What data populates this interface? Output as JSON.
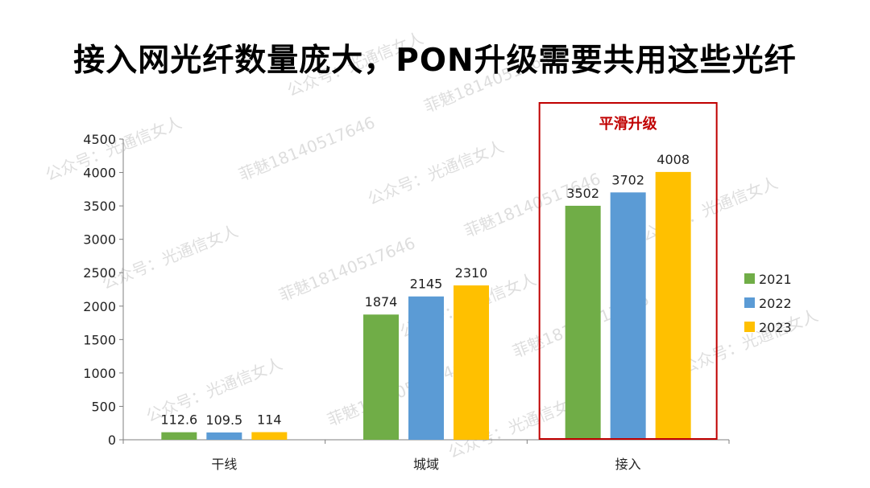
{
  "title": "接入网光纤数量庞大，PON升级需要共用这些光纤",
  "chart_data": {
    "type": "bar",
    "categories": [
      "干线",
      "城域",
      "接入"
    ],
    "series": [
      {
        "name": "2021",
        "values": [
          112.6,
          1874,
          3502
        ]
      },
      {
        "name": "2022",
        "values": [
          109.5,
          2145,
          3702
        ]
      },
      {
        "name": "2023",
        "values": [
          114,
          2310,
          4008
        ]
      }
    ],
    "data_labels": [
      [
        "112.6",
        "1874",
        "3502"
      ],
      [
        "109.5",
        "2145",
        "3702"
      ],
      [
        "114",
        "2310",
        "4008"
      ]
    ],
    "yticks": [
      0,
      500,
      1000,
      1500,
      2000,
      2500,
      3000,
      3500,
      4000,
      4500
    ],
    "ylim": [
      0,
      4500
    ],
    "xlabel": "",
    "ylabel": "",
    "legend_position": "right",
    "grid": false,
    "colors": [
      "#70ad47",
      "#5b9bd5",
      "#ffc000"
    ],
    "highlight": {
      "category": "接入",
      "label": "平滑升级",
      "color": "#c00000"
    }
  },
  "watermarks": [
    {
      "text": "公众号：光通信女人"
    },
    {
      "text": "菲魅18140517646"
    }
  ]
}
